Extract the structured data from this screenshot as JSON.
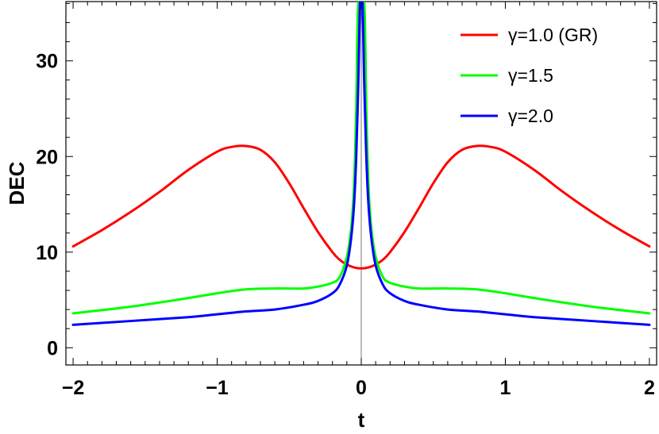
{
  "chart_data": {
    "type": "line",
    "title": "",
    "xlabel": "t",
    "ylabel": "DEC",
    "xlim": [
      -2.05,
      2.05
    ],
    "ylim": [
      -1.8,
      36.2
    ],
    "x_ticks": [
      -2,
      -1,
      0,
      1,
      2
    ],
    "x_tick_labels": [
      "−2",
      "−1",
      "0",
      "1",
      "2"
    ],
    "y_ticks": [
      0,
      10,
      20,
      30
    ],
    "y_tick_labels": [
      "0",
      "10",
      "20",
      "30"
    ],
    "grid": false,
    "frame": true,
    "vertical_reference_line_x": 0,
    "legend": {
      "placement": "top-right"
    },
    "series": [
      {
        "name": "γ=1.0 (GR)",
        "color": "#ff0000",
        "x": [
          -2.0,
          -1.8,
          -1.6,
          -1.4,
          -1.2,
          -1.0,
          -0.9,
          -0.8,
          -0.7,
          -0.6,
          -0.5,
          -0.4,
          -0.3,
          -0.2,
          -0.15,
          -0.1,
          -0.05,
          0.0,
          0.05,
          0.1,
          0.15,
          0.2,
          0.3,
          0.4,
          0.5,
          0.6,
          0.7,
          0.8,
          0.9,
          1.0,
          1.2,
          1.4,
          1.6,
          1.8,
          2.0
        ],
        "values": [
          10.6,
          12.3,
          14.2,
          16.3,
          18.6,
          20.5,
          21.0,
          21.1,
          20.7,
          19.4,
          17.2,
          14.6,
          12.1,
          10.0,
          9.2,
          8.7,
          8.4,
          8.3,
          8.4,
          8.7,
          9.2,
          10.0,
          12.1,
          14.6,
          17.2,
          19.4,
          20.7,
          21.1,
          21.0,
          20.5,
          18.6,
          16.3,
          14.2,
          12.3,
          10.6
        ]
      },
      {
        "name": "γ=1.5",
        "color": "#00ff00",
        "x": [
          -2.0,
          -1.6,
          -1.2,
          -1.0,
          -0.8,
          -0.6,
          -0.4,
          -0.3,
          -0.2,
          -0.15,
          -0.1,
          -0.07,
          -0.05,
          -0.035,
          -0.02,
          0.02,
          0.035,
          0.05,
          0.07,
          0.1,
          0.15,
          0.2,
          0.3,
          0.4,
          0.6,
          0.8,
          1.0,
          1.2,
          1.6,
          2.0
        ],
        "values": [
          3.6,
          4.3,
          5.2,
          5.7,
          6.1,
          6.2,
          6.2,
          6.4,
          6.8,
          7.4,
          9.5,
          12.5,
          17.0,
          25.0,
          36.2,
          36.2,
          25.0,
          17.0,
          12.5,
          9.5,
          7.4,
          6.8,
          6.4,
          6.2,
          6.2,
          6.1,
          5.7,
          5.2,
          4.3,
          3.6
        ]
      },
      {
        "name": "γ=2.0",
        "color": "#0000ff",
        "x": [
          -2.0,
          -1.6,
          -1.2,
          -1.0,
          -0.8,
          -0.6,
          -0.4,
          -0.3,
          -0.2,
          -0.15,
          -0.1,
          -0.07,
          -0.05,
          -0.035,
          -0.02,
          -0.008,
          0.008,
          0.02,
          0.035,
          0.05,
          0.07,
          0.1,
          0.15,
          0.2,
          0.3,
          0.4,
          0.6,
          0.8,
          1.0,
          1.2,
          1.6,
          2.0
        ],
        "values": [
          2.4,
          2.8,
          3.2,
          3.5,
          3.8,
          4.0,
          4.5,
          4.9,
          5.7,
          6.6,
          8.6,
          11.5,
          15.0,
          20.0,
          28.0,
          36.2,
          36.2,
          28.0,
          20.0,
          15.0,
          11.5,
          8.6,
          6.6,
          5.7,
          4.9,
          4.5,
          4.0,
          3.8,
          3.5,
          3.2,
          2.8,
          2.4
        ]
      }
    ]
  }
}
